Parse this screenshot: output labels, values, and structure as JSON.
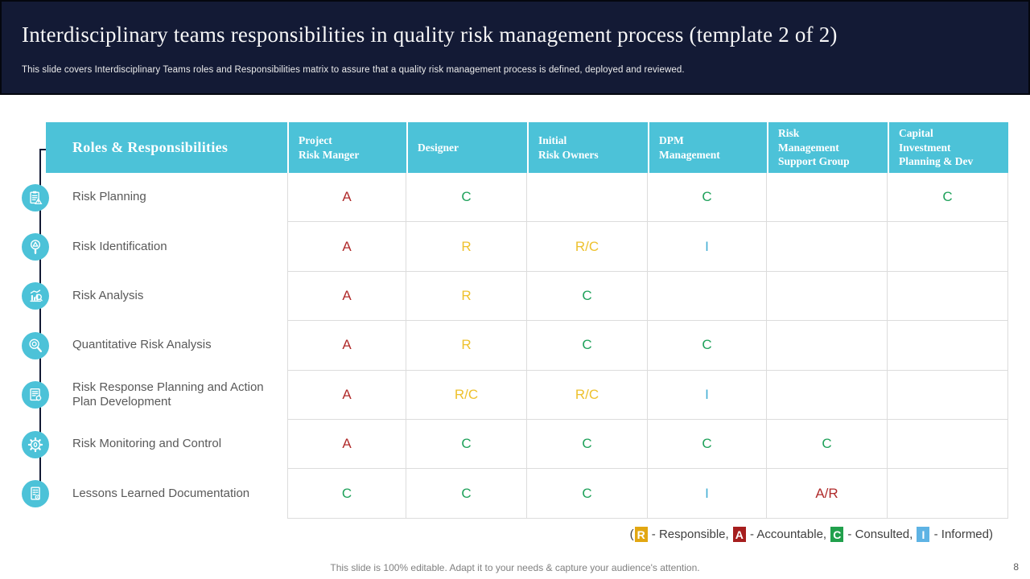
{
  "slide": {
    "title": "Interdisciplinary teams responsibilities in quality risk management process (template 2 of 2)",
    "subtitle": "This slide covers Interdisciplinary Teams roles and Responsibilities matrix to assure that a quality risk management process is defined, deployed and reviewed.",
    "footer": "This slide is 100% editable. Adapt it to your needs & capture your audience's attention.",
    "page_number": "8"
  },
  "table": {
    "corner_header": "Roles & Responsibilities",
    "columns": [
      "Project\nRisk Manger",
      "Designer",
      "Initial\nRisk Owners",
      "DPM\nManagement",
      "Risk\nManagement\nSupport Group",
      "Capital\nInvestment\nPlanning & Dev"
    ],
    "rows": [
      {
        "label": "Risk Planning",
        "icon": "clipboard-warning-icon",
        "cells": [
          "A",
          "C",
          "",
          "C",
          "",
          "C"
        ]
      },
      {
        "label": "Risk Identification",
        "icon": "magnifier-warning-icon",
        "cells": [
          "A",
          "R",
          "R/C",
          "I",
          "",
          ""
        ]
      },
      {
        "label": "Risk Analysis",
        "icon": "chart-magnifier-icon",
        "cells": [
          "A",
          "R",
          "C",
          "",
          "",
          ""
        ]
      },
      {
        "label": "Quantitative Risk Analysis",
        "icon": "magnifier-target-icon",
        "cells": [
          "A",
          "R",
          "C",
          "C",
          "",
          ""
        ]
      },
      {
        "label": "Risk Response Planning and Action Plan Development",
        "icon": "document-gear-icon",
        "cells": [
          "A",
          "R/C",
          "R/C",
          "I",
          "",
          ""
        ]
      },
      {
        "label": "Risk Monitoring and Control",
        "icon": "gear-icon",
        "cells": [
          "A",
          "C",
          "C",
          "C",
          "C",
          ""
        ]
      },
      {
        "label": "Lessons Learned Documentation",
        "icon": "checklist-gear-icon",
        "cells": [
          "C",
          "C",
          "C",
          "I",
          "A/R",
          ""
        ]
      }
    ]
  },
  "legend": {
    "prefix": "(",
    "suffix": ")",
    "separator": ", ",
    "dash": " - ",
    "items": [
      {
        "letter": "R",
        "label": "Responsible",
        "bg": "#E2A712"
      },
      {
        "letter": "A",
        "label": "Accountable",
        "bg": "#A61E1E"
      },
      {
        "letter": "C",
        "label": "Consulted",
        "bg": "#21A04C"
      },
      {
        "letter": "I",
        "label": "Informed",
        "bg": "#5EB3E4"
      }
    ]
  },
  "colors": {
    "teal": "#4CC2D8",
    "navy": "#131A35",
    "responsible": "#EEC12D",
    "accountable": "#B02B2B",
    "consulted": "#1EA15A",
    "informed": "#41ADD3"
  }
}
